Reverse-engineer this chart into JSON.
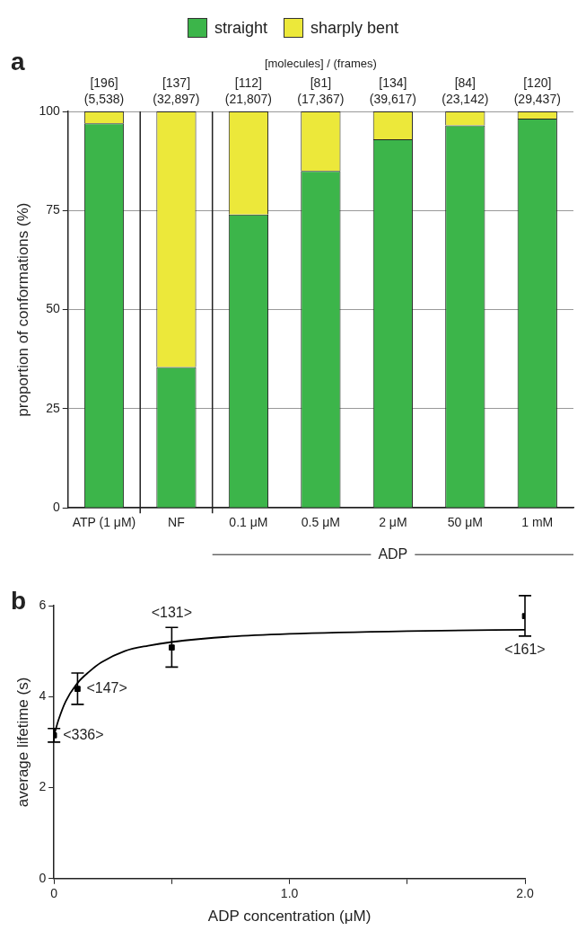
{
  "chart_data": [
    {
      "type": "bar",
      "stacked": true,
      "categories": [
        "ATP (1 μM)",
        "NF",
        "0.1 μM",
        "0.5 μM",
        "2 μM",
        "50 μM",
        "1 mM"
      ],
      "series": [
        {
          "name": "straight",
          "color": "#3cb54a",
          "values": [
            97,
            35.5,
            74,
            85,
            93,
            96.5,
            98.2
          ]
        },
        {
          "name": "sharply bent",
          "color": "#ece83a",
          "values": [
            3,
            64.5,
            26,
            15,
            7,
            3.5,
            1.8
          ]
        }
      ],
      "ylabel": "proportion of conformations (%)",
      "ylim": [
        0,
        100
      ],
      "yticks": [
        0,
        25,
        50,
        75,
        100
      ],
      "grid": "y",
      "legend": "top",
      "annotations": [
        "a",
        "[molecules] / (frames)",
        "ADP",
        {
          "text": "[196]",
          "x": "ATP (1 μM)",
          "y": 100
        },
        {
          "text": "(5,538)",
          "x": "ATP (1 μM)",
          "y": 100
        },
        {
          "text": "[137]",
          "x": "NF",
          "y": 100
        },
        {
          "text": "(32,897)",
          "x": "NF",
          "y": 100
        },
        {
          "text": "[112]",
          "x": "0.1 μM",
          "y": 100
        },
        {
          "text": "(21,807)",
          "x": "0.1 μM",
          "y": 100
        },
        {
          "text": "[81]",
          "x": "0.5 μM",
          "y": 100
        },
        {
          "text": "(17,367)",
          "x": "0.5 μM",
          "y": 100
        },
        {
          "text": "[134]",
          "x": "2 μM",
          "y": 100
        },
        {
          "text": "(39,617)",
          "x": "2 μM",
          "y": 100
        },
        {
          "text": "[84]",
          "x": "50 μM",
          "y": 100
        },
        {
          "text": "(23,142)",
          "x": "50 μM",
          "y": 100
        },
        {
          "text": "[120]",
          "x": "1 mM",
          "y": 100
        },
        {
          "text": "(29,437)",
          "x": "1 mM",
          "y": 100
        }
      ]
    },
    {
      "type": "scatter",
      "xlabel": "ADP concentration (μM)",
      "ylabel": "average lifetime (s)",
      "xlim": [
        0,
        2.0
      ],
      "ylim": [
        0,
        6
      ],
      "xticks": [
        0,
        {
          "value": 0.5,
          "label": null
        },
        {
          "value": 1.0,
          "label": "1.0"
        },
        {
          "value": 1.5,
          "label": null
        },
        {
          "value": 2.0,
          "label": "2.0"
        }
      ],
      "yticks": [
        0,
        2,
        4,
        6
      ],
      "grid": false,
      "legend": false,
      "series": [
        {
          "type": "scatter",
          "color": "#000000",
          "marker": "square",
          "x": [
            0,
            0.1,
            0.5,
            2.0
          ],
          "values": [
            3.15,
            4.17,
            5.08,
            5.77
          ],
          "errors": [
            [
              3.0,
              3.3
            ],
            [
              3.83,
              4.52
            ],
            [
              4.65,
              5.52
            ],
            [
              5.33,
              6.22
            ]
          ]
        },
        {
          "type": "line",
          "color": "#000000",
          "marker": "none",
          "line_style": "solid",
          "x": [
            0,
            0.02,
            0.05,
            0.1,
            0.15,
            0.2,
            0.3,
            0.4,
            0.5,
            0.75,
            1.0,
            1.5,
            2.0
          ],
          "values": [
            3.15,
            3.5,
            3.9,
            4.3,
            4.55,
            4.75,
            5.0,
            5.12,
            5.2,
            5.32,
            5.38,
            5.44,
            5.47
          ]
        }
      ],
      "annotations": [
        "b",
        {
          "text": "<336>",
          "x": 0,
          "y": 3.15
        },
        {
          "text": "<147>",
          "x": 0.1,
          "y": 4.17
        },
        {
          "text": "<131>",
          "x": 0.5,
          "y": 5.08
        },
        {
          "text": "<161>",
          "x": 2.0,
          "y": 5.77
        }
      ]
    }
  ]
}
